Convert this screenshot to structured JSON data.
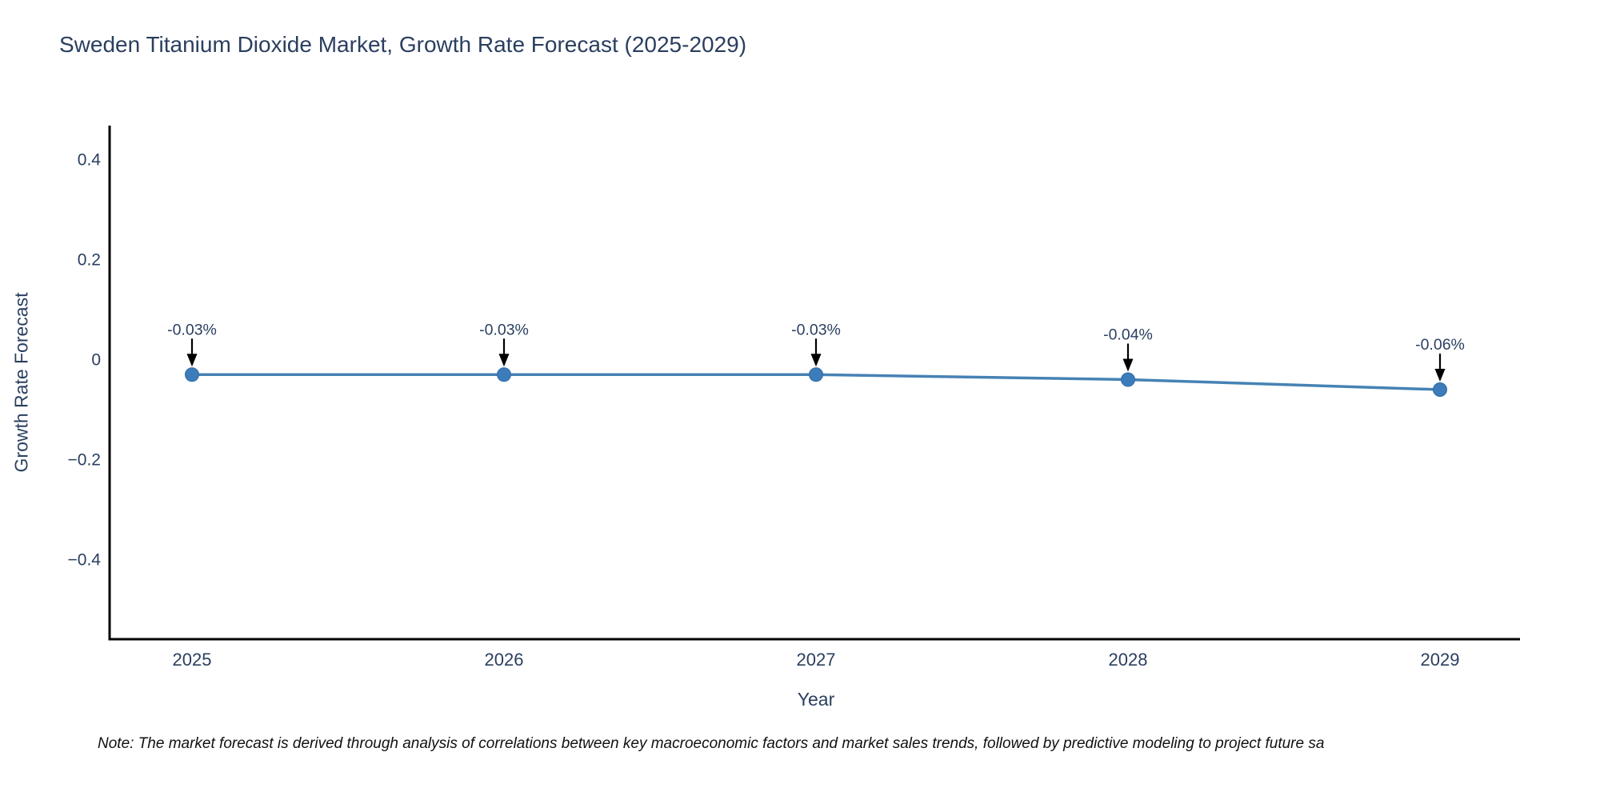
{
  "note": "Note: The market forecast is derived through analysis of correlations between key macroeconomic factors and market sales trends, followed by predictive modeling to project future sa",
  "chart_data": {
    "type": "line",
    "title": "Sweden Titanium Dioxide Market, Growth Rate Forecast (2025-2029)",
    "xlabel": "Year",
    "ylabel": "Growth Rate Forecast",
    "x": [
      "2025",
      "2026",
      "2027",
      "2028",
      "2029"
    ],
    "series": [
      {
        "name": "Growth Rate Forecast",
        "values": [
          -0.03,
          -0.03,
          -0.03,
          -0.04,
          -0.06
        ]
      }
    ],
    "point_labels": [
      "-0.03%",
      "-0.03%",
      "-0.03%",
      "-0.04%",
      "-0.06%"
    ],
    "yticks": [
      {
        "value": 0.4,
        "label": "0.4"
      },
      {
        "value": 0.2,
        "label": "0.2"
      },
      {
        "value": 0,
        "label": "0"
      },
      {
        "value": -0.2,
        "label": "−0.2"
      },
      {
        "value": -0.4,
        "label": "−0.4"
      }
    ],
    "ylim": [
      -0.56,
      0.47
    ],
    "grid": false,
    "legend_position": "none",
    "colors": {
      "line": "#4682b4",
      "marker": "#3d7cba",
      "marker_edge": "#2e6ca8",
      "axis": "#000000",
      "text": "#2a3f5f",
      "annotation_arrow": "#000000",
      "note_text": "#111111"
    }
  }
}
